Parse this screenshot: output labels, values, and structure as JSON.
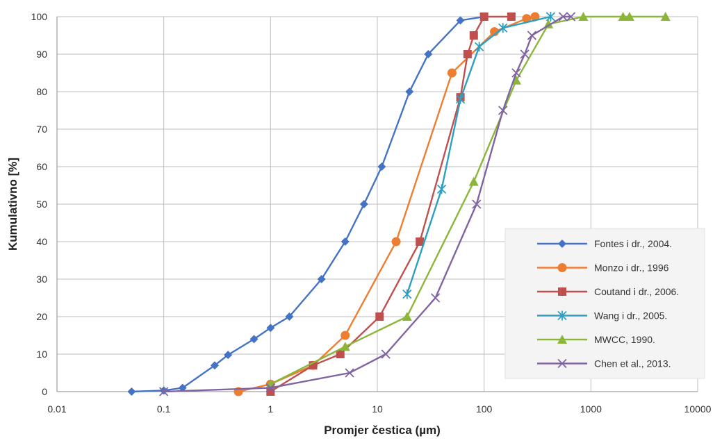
{
  "chart_data": {
    "type": "line",
    "title": "",
    "xlabel": "Promjer čestica (µm)",
    "ylabel": "Kumulativno [%]",
    "x_scale": "log",
    "xlim": [
      0.01,
      10000
    ],
    "ylim": [
      0,
      100
    ],
    "grid": true,
    "legend_position": "right",
    "x_ticks": [
      0.01,
      0.1,
      1,
      10,
      100,
      1000,
      10000
    ],
    "x_tick_labels": [
      "0.01",
      "0.1",
      "1",
      "10",
      "100",
      "1000",
      "10000"
    ],
    "y_ticks": [
      0,
      10,
      20,
      30,
      40,
      50,
      60,
      70,
      80,
      90,
      100
    ],
    "y_tick_labels": [
      "0",
      "10",
      "20",
      "30",
      "40",
      "50",
      "60",
      "70",
      "80",
      "90",
      "100"
    ],
    "series": [
      {
        "name": "Fontes i dr., 2004.",
        "color": "#4472c4",
        "marker": "diamond",
        "x": [
          0.05,
          0.1,
          0.15,
          0.3,
          0.4,
          0.7,
          1,
          1.5,
          3,
          5,
          7.5,
          11,
          20,
          30,
          60,
          100
        ],
        "y": [
          0,
          0.3,
          1,
          7,
          9.8,
          14,
          17,
          20,
          30,
          40,
          50,
          60,
          80,
          90,
          99,
          100
        ]
      },
      {
        "name": "Monzo i dr., 1996",
        "color": "#ed7d31",
        "marker": "circle",
        "x": [
          0.5,
          1,
          2.5,
          5,
          15,
          50,
          125,
          250,
          300
        ],
        "y": [
          0,
          2,
          7,
          15,
          40,
          85,
          96,
          99.5,
          100
        ]
      },
      {
        "name": "Coutand i dr., 2006.",
        "color": "#c0504d",
        "marker": "square",
        "x": [
          1,
          2.5,
          4.5,
          10.5,
          25,
          60,
          70,
          80,
          100,
          180
        ],
        "y": [
          0,
          7,
          10,
          20,
          40,
          78.5,
          90,
          95,
          100,
          100
        ]
      },
      {
        "name": "Wang i dr., 2005.",
        "color": "#2e9fc0",
        "marker": "star",
        "x": [
          19,
          40,
          60,
          90,
          150,
          420
        ],
        "y": [
          26,
          54,
          78,
          92,
          97,
          100
        ]
      },
      {
        "name": "MWCC, 1990.",
        "color": "#8bb63a",
        "marker": "triangle",
        "x": [
          1,
          5,
          19,
          80,
          200,
          400,
          850,
          2000,
          2300,
          5000
        ],
        "y": [
          2,
          12,
          20,
          56,
          83,
          98,
          100,
          100,
          100,
          100
        ]
      },
      {
        "name": "Chen et al., 2013.",
        "color": "#8064a2",
        "marker": "x",
        "x": [
          0.1,
          1,
          5.5,
          12,
          35,
          85,
          150,
          200,
          240,
          280,
          550,
          650
        ],
        "y": [
          0,
          1,
          5,
          10,
          25,
          50,
          75,
          85,
          90,
          95,
          100,
          100
        ]
      }
    ]
  }
}
